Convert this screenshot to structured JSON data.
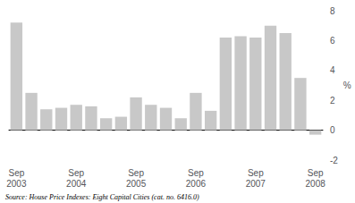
{
  "chart_data": {
    "type": "bar",
    "ylabel": "%",
    "annotations": [
      "Source: House Price Indexes: Eight Capital Cities (cat. no. 6416.0)"
    ],
    "categories": [
      "Sep\n2003",
      null,
      null,
      null,
      "Sep\n2004",
      null,
      null,
      null,
      "Sep\n2005",
      null,
      null,
      null,
      "Sep\n2006",
      null,
      null,
      null,
      "Sep\n2007",
      null,
      null,
      null,
      "Sep\n2008"
    ],
    "values": [
      7.2,
      2.5,
      1.4,
      1.5,
      1.7,
      1.6,
      0.8,
      0.9,
      2.2,
      1.7,
      1.5,
      0.8,
      2.5,
      1.3,
      6.2,
      6.3,
      6.2,
      7.0,
      6.5,
      3.5,
      -0.3
    ],
    "color": "#c8c8c8",
    "ylim": [
      -2,
      8
    ],
    "yticks": [
      -2,
      0,
      2,
      4,
      6,
      8
    ],
    "grid": false
  }
}
